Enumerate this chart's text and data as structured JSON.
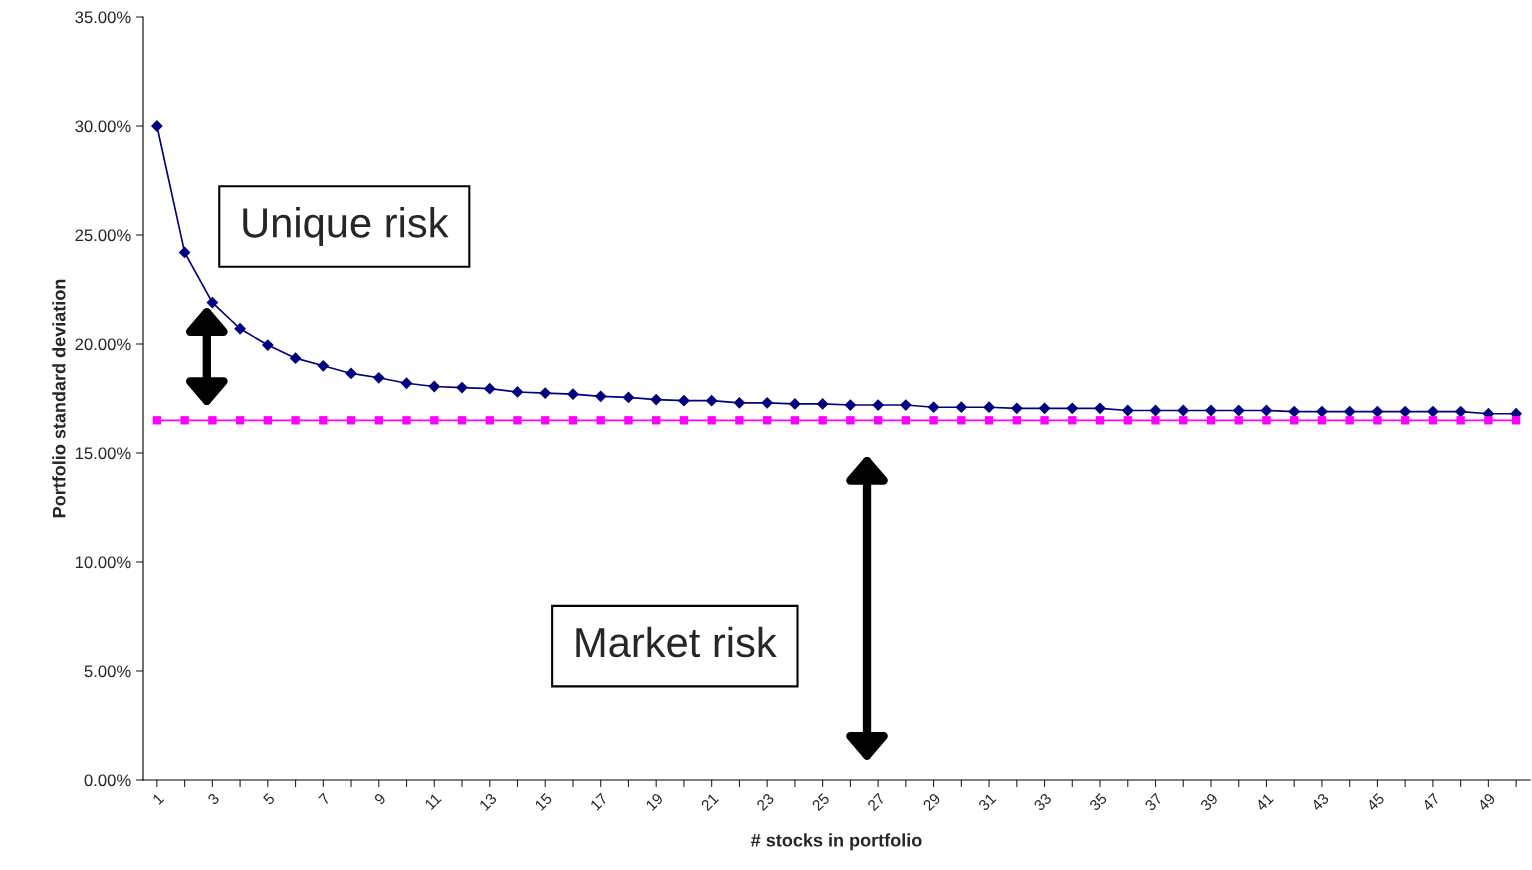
{
  "chart_data": {
    "type": "line",
    "xlabel": "# stocks in portfolio",
    "ylabel": "Portfolio standard deviation",
    "categories": [
      "1",
      null,
      "3",
      null,
      "5",
      null,
      "7",
      null,
      "9",
      null,
      "11",
      null,
      "13",
      null,
      "15",
      null,
      "17",
      null,
      "19",
      null,
      "21",
      null,
      "23",
      null,
      "25",
      null,
      "27",
      null,
      "29",
      null,
      "31",
      null,
      "33",
      null,
      "35",
      null,
      "37",
      null,
      "39",
      null,
      "41",
      null,
      "43",
      null,
      "45",
      null,
      "47",
      null,
      "49",
      null
    ],
    "series": [
      {
        "color": "#000080",
        "marker": "diamond",
        "values": [
          30.0,
          24.2,
          21.9,
          20.7,
          19.95,
          19.35,
          19.0,
          18.65,
          18.45,
          18.2,
          18.05,
          18.0,
          17.95,
          17.8,
          17.75,
          17.7,
          17.6,
          17.55,
          17.45,
          17.4,
          17.4,
          17.3,
          17.3,
          17.25,
          17.25,
          17.2,
          17.2,
          17.2,
          17.1,
          17.1,
          17.1,
          17.05,
          17.05,
          17.05,
          17.05,
          16.95,
          16.95,
          16.95,
          16.95,
          16.95,
          16.95,
          16.9,
          16.9,
          16.9,
          16.9,
          16.9,
          16.9,
          16.9,
          16.8,
          16.8
        ]
      },
      {
        "color": "#ff00ff",
        "marker": "square",
        "values": [
          16.5,
          16.5,
          16.5,
          16.5,
          16.5,
          16.5,
          16.5,
          16.5,
          16.5,
          16.5,
          16.5,
          16.5,
          16.5,
          16.5,
          16.5,
          16.5,
          16.5,
          16.5,
          16.5,
          16.5,
          16.5,
          16.5,
          16.5,
          16.5,
          16.5,
          16.5,
          16.5,
          16.5,
          16.5,
          16.5,
          16.5,
          16.5,
          16.5,
          16.5,
          16.5,
          16.5,
          16.5,
          16.5,
          16.5,
          16.5,
          16.5,
          16.5,
          16.5,
          16.5,
          16.5,
          16.5,
          16.5,
          16.5,
          16.5,
          16.5
        ]
      }
    ],
    "ylim": [
      0,
      35
    ],
    "yticks": [
      {
        "value": 0,
        "label": "0.00%"
      },
      {
        "value": 5,
        "label": "5.00%"
      },
      {
        "value": 10,
        "label": "10.00%"
      },
      {
        "value": 15,
        "label": "15.00%"
      },
      {
        "value": 20,
        "label": "20.00%"
      },
      {
        "value": 25,
        "label": "25.00%"
      },
      {
        "value": 30,
        "label": "30.00%"
      },
      {
        "value": 35,
        "label": "35.00%"
      }
    ],
    "annotations": [
      "Unique risk",
      "Market risk"
    ],
    "grid": false,
    "legend": false,
    "line_style": "solid"
  }
}
